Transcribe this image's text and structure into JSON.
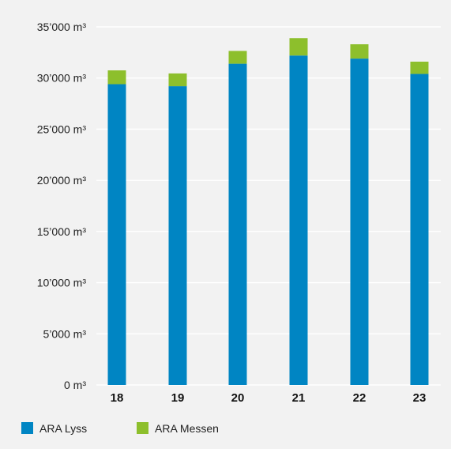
{
  "chart_data": {
    "type": "bar",
    "stacked": true,
    "categories": [
      "18",
      "19",
      "20",
      "21",
      "22",
      "23"
    ],
    "series": [
      {
        "name": "ARA Lyss",
        "color": "#0085c3",
        "values": [
          29400,
          29200,
          31400,
          32200,
          31900,
          30400
        ]
      },
      {
        "name": "ARA Messen",
        "color": "#8dbf2c",
        "values": [
          1350,
          1250,
          1250,
          1700,
          1400,
          1200
        ]
      }
    ],
    "ylim": [
      0,
      35000
    ],
    "yticks": [
      {
        "value": 0,
        "label": "0 m³"
      },
      {
        "value": 5000,
        "label": "5’000 m³"
      },
      {
        "value": 10000,
        "label": "10’000 m³"
      },
      {
        "value": 15000,
        "label": "15’000 m³"
      },
      {
        "value": 20000,
        "label": "20’000 m³"
      },
      {
        "value": 25000,
        "label": "25’000 m³"
      },
      {
        "value": 30000,
        "label": "30’000 m³"
      },
      {
        "value": 35000,
        "label": "35’000 m³"
      }
    ],
    "grid": true,
    "legend_position": "bottom-left"
  }
}
